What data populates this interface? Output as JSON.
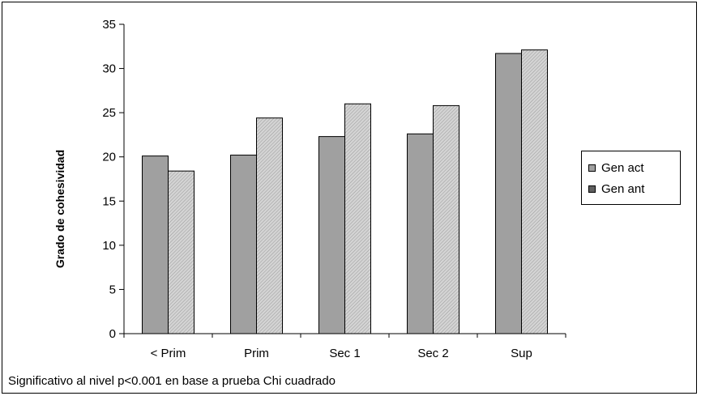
{
  "chart_data": {
    "type": "bar",
    "categories": [
      "< Prim",
      "Prim",
      "Sec 1",
      "Sec 2",
      "Sup"
    ],
    "series": [
      {
        "name": "Gen act",
        "values": [
          20.1,
          20.2,
          22.3,
          22.6,
          31.7
        ],
        "color": "#a0a0a0"
      },
      {
        "name": "Gen ant",
        "values": [
          18.4,
          24.4,
          26.0,
          25.8,
          32.1
        ],
        "color": "#c4c4c4"
      }
    ],
    "ylabel": "Grado de cohesividad",
    "xlabel": "",
    "ylim": [
      0,
      35
    ],
    "yticks": [
      0,
      5,
      10,
      15,
      20,
      25,
      30,
      35
    ],
    "legend_position": "right",
    "grid": false,
    "footnote": "Significativo al nivel p<0.001 en base a prueba Chi cuadrado"
  }
}
